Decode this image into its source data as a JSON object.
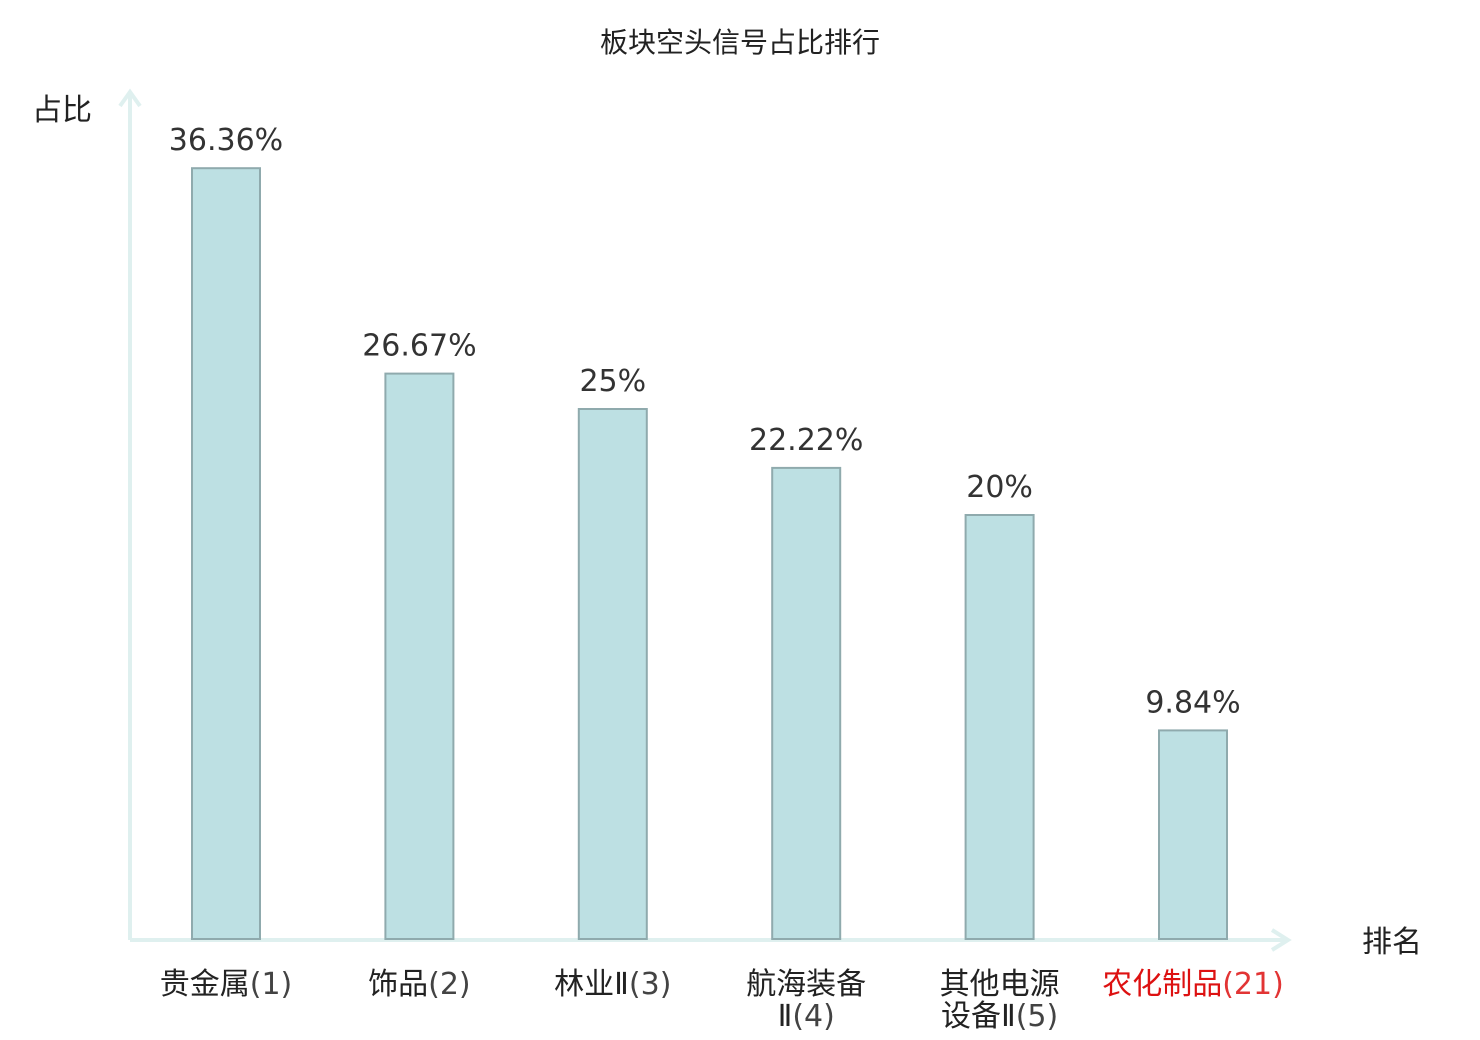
{
  "chart_data": {
    "type": "bar",
    "title": "板块空头信号占比排行",
    "ylabel": "占比",
    "xlabel": "排名",
    "ylim": [
      0,
      40
    ],
    "grid": false,
    "categories": [
      {
        "name": "贵金属",
        "rank": "(1)"
      },
      {
        "name": "饰品",
        "rank": "(2)"
      },
      {
        "name": "林业Ⅱ",
        "rank": "(3)"
      },
      {
        "name": "航海装备Ⅱ",
        "rank": "(4)"
      },
      {
        "name": "其他电源设备Ⅱ",
        "rank": "(5)"
      },
      {
        "name": "农化制品",
        "rank": "(21)",
        "highlight": true
      }
    ],
    "values": [
      36.36,
      26.67,
      25,
      22.22,
      20,
      9.84
    ],
    "value_labels": [
      "36.36%",
      "26.67%",
      "25%",
      "22.22%",
      "20%",
      "9.84%"
    ],
    "colors": {
      "bar_fill": "#bde0e3",
      "bar_stroke": "#8faaad",
      "axis": "#dff0ef",
      "highlight_label": "#dd1111"
    }
  }
}
